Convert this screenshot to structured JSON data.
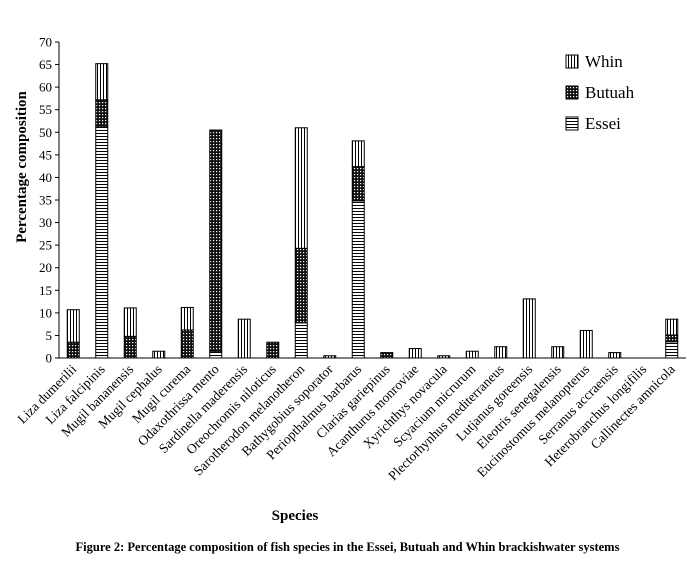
{
  "chart_data": {
    "type": "stacked-bar",
    "title": "",
    "xlabel": "Species",
    "ylabel": "Percentage composition",
    "ylim": [
      0,
      70
    ],
    "yticks": [
      0,
      5,
      10,
      15,
      20,
      25,
      30,
      35,
      40,
      45,
      50,
      55,
      60,
      65,
      70
    ],
    "legend_position": "top-right",
    "categories": [
      "Liza dumerilii",
      "Liza falcipinis",
      "Mugil bananensis",
      "Mugil cephalus",
      "Mugil curema",
      "Odaxothrissa mento",
      "Sardinella maderensis",
      "Oreochromis niloticus",
      "Sarotherodon melanotheron",
      "Bathygobius soporator",
      "Periopthalmus barbarus",
      "Clarias gariepinus",
      "Acanthurus monroviae",
      "Xyrichthys novacula",
      "Scyacium micrurum",
      "Plectorhynhus mediterraneus",
      "Lutjanus goreensis",
      "Eleotris senegalensis",
      "Eucinostomus melanopterus",
      "Serranus accraensis",
      "Heterobranchus longifilis",
      "Callinectes amnicola"
    ],
    "series": [
      {
        "name": "Essei",
        "pattern": "horizontal-lines",
        "values": [
          0,
          51.2,
          0,
          0,
          0,
          1.5,
          0,
          0,
          7.8,
          0,
          34.8,
          0,
          0,
          0,
          0,
          0,
          0,
          0,
          0,
          0,
          0,
          3.6
        ]
      },
      {
        "name": "Butuah",
        "pattern": "crosshatch",
        "values": [
          3.5,
          6.0,
          4.8,
          0,
          6.2,
          49.0,
          0,
          3.5,
          16.5,
          0,
          7.6,
          1.2,
          0,
          0,
          0,
          0,
          0,
          0,
          0,
          0,
          0,
          1.5
        ]
      },
      {
        "name": "Whin",
        "pattern": "vertical-lines",
        "values": [
          7.2,
          8.0,
          6.3,
          1.5,
          5.0,
          0,
          8.6,
          0,
          26.7,
          0.5,
          5.7,
          0,
          2.1,
          0.5,
          1.5,
          2.5,
          13.1,
          2.5,
          6.1,
          1.2,
          0,
          3.5
        ]
      }
    ]
  },
  "legend": [
    "Whin",
    "Butuah",
    "Essei"
  ],
  "caption": "Figure 2: Percentage composition of fish species in the Essei, Butuah and Whin brackishwater systems"
}
